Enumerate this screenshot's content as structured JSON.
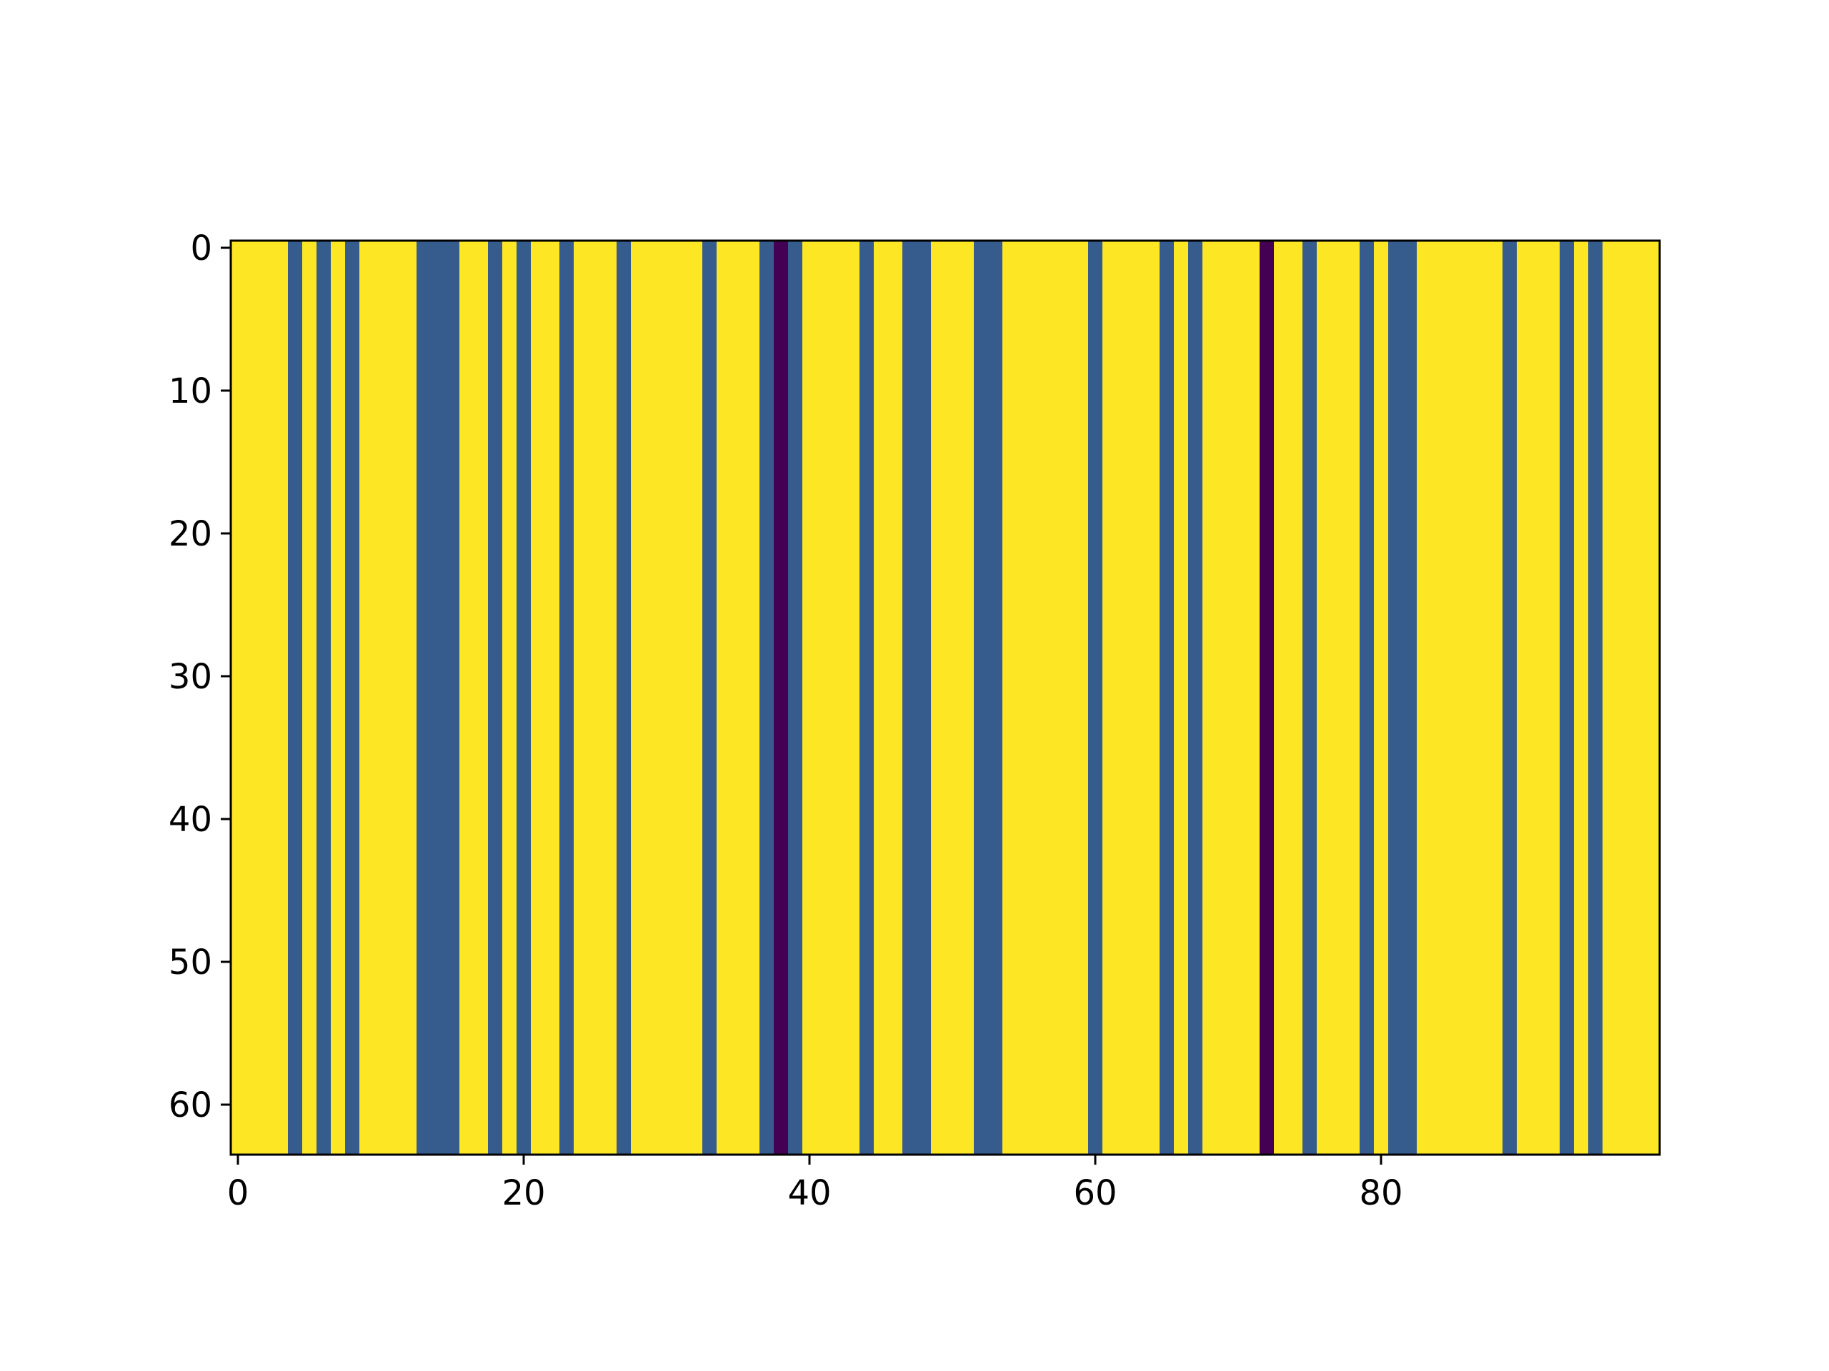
{
  "chart_data": {
    "type": "heatmap",
    "title": "",
    "xlabel": "",
    "ylabel": "",
    "colormap": "viridis",
    "colors": {
      "high": "#fde725",
      "mid": "#365c8d",
      "low": "#440154",
      "axis": "#000000",
      "background": "#ffffff"
    },
    "n_columns": 100,
    "n_rows": 64,
    "xlim": [
      -0.5,
      99.5
    ],
    "ylim": [
      63.5,
      -0.5
    ],
    "y_inverted": true,
    "grid": false,
    "column_values": [
      2,
      2,
      2,
      2,
      1,
      2,
      1,
      2,
      1,
      2,
      2,
      2,
      2,
      1,
      1,
      1,
      2,
      2,
      1,
      2,
      1,
      2,
      2,
      1,
      2,
      2,
      2,
      1,
      2,
      2,
      2,
      2,
      2,
      1,
      2,
      2,
      2,
      1,
      0,
      1,
      2,
      2,
      2,
      2,
      1,
      2,
      2,
      1,
      1,
      2,
      2,
      2,
      1,
      1,
      2,
      2,
      2,
      2,
      2,
      2,
      1,
      2,
      2,
      2,
      2,
      1,
      2,
      1,
      2,
      2,
      2,
      2,
      0,
      2,
      2,
      1,
      2,
      2,
      2,
      1,
      2,
      1,
      1,
      2,
      2,
      2,
      2,
      2,
      2,
      1,
      2,
      2,
      2,
      1,
      2,
      1,
      2,
      2,
      2,
      2
    ],
    "legend_of_values": {
      "2": "high",
      "1": "mid",
      "0": "low"
    },
    "xticks": [
      0,
      20,
      40,
      60,
      80
    ],
    "xtick_labels": [
      "0",
      "20",
      "40",
      "60",
      "80"
    ],
    "yticks": [
      0,
      10,
      20,
      30,
      40,
      50,
      60
    ],
    "ytick_labels": [
      "0",
      "10",
      "20",
      "30",
      "40",
      "50",
      "60"
    ]
  }
}
